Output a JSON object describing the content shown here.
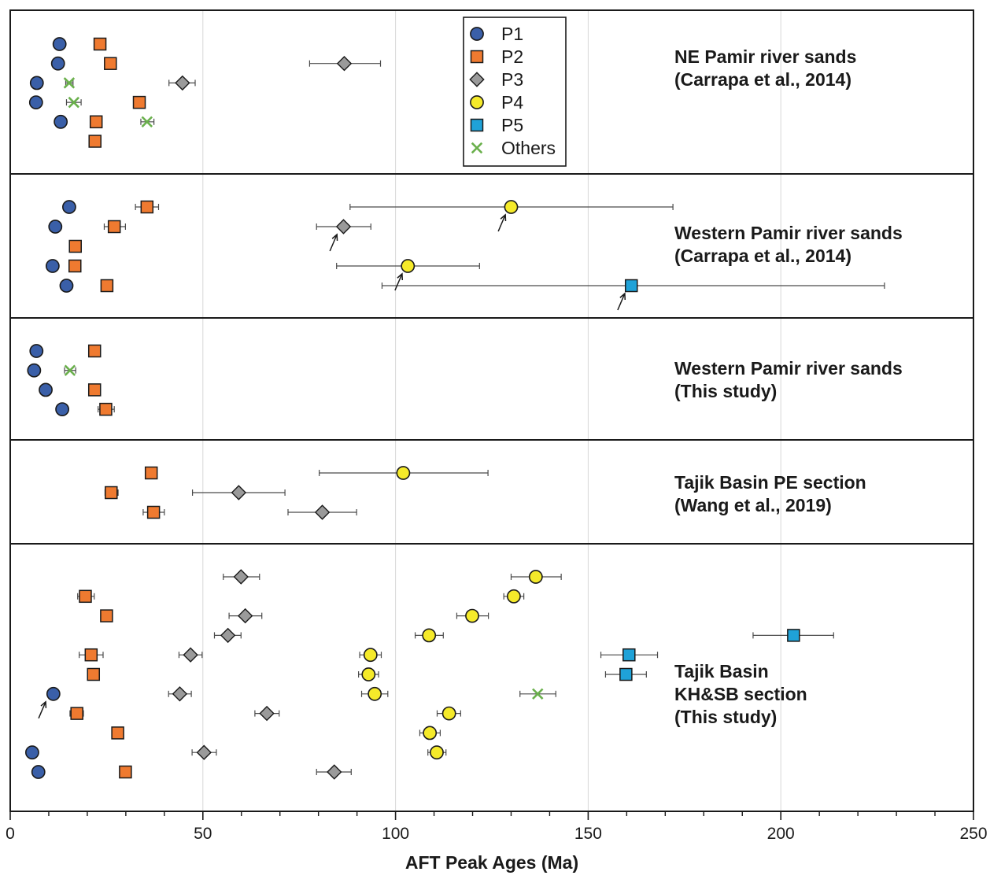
{
  "chart_data": {
    "type": "scatter",
    "xlabel": "AFT Peak Ages (Ma)",
    "ylabel": "",
    "xlim": [
      0,
      250
    ],
    "x_major_ticks": [
      0,
      50,
      100,
      150,
      200,
      250
    ],
    "x_minor_step": 10,
    "grid": "vertical-major",
    "legend": {
      "placement": "top-center",
      "entries": [
        {
          "key": "P1",
          "label": "P1",
          "marker": "circle",
          "color": "#3a5fa8"
        },
        {
          "key": "P2",
          "label": "P2",
          "marker": "square",
          "color": "#ef7a30"
        },
        {
          "key": "P3",
          "label": "P3",
          "marker": "diamond",
          "color": "#9a9a9a"
        },
        {
          "key": "P4",
          "label": "P4",
          "marker": "circle",
          "color": "#f5ea2a"
        },
        {
          "key": "P5",
          "label": "P5",
          "marker": "square",
          "color": "#1fa2d8"
        },
        {
          "key": "Others",
          "label": "Others",
          "marker": "x",
          "color": "#6ab04c"
        }
      ]
    },
    "panels": [
      {
        "label_lines": [
          "NE Pamir river sands",
          "(Carrapa et al., 2014)"
        ],
        "rows": 6,
        "points": [
          {
            "row": 1,
            "x": 12.8,
            "series": "P1"
          },
          {
            "row": 1,
            "x": 23.3,
            "series": "P2"
          },
          {
            "row": 2,
            "x": 12.4,
            "series": "P1"
          },
          {
            "row": 2,
            "x": 26.0,
            "series": "P2"
          },
          {
            "row": 2,
            "x": 86.7,
            "series": "P3",
            "xerr": [
              77.7,
              96.1
            ]
          },
          {
            "row": 3,
            "x": 6.9,
            "series": "P1"
          },
          {
            "row": 3,
            "x": 15.3,
            "series": "Others",
            "xerr": [
              14.4,
              16.3
            ]
          },
          {
            "row": 3,
            "x": 44.7,
            "series": "P3",
            "xerr": [
              41.2,
              48.0
            ]
          },
          {
            "row": 4,
            "x": 6.7,
            "series": "P1"
          },
          {
            "row": 4,
            "x": 16.5,
            "series": "Others",
            "xerr": [
              14.6,
              18.4
            ]
          },
          {
            "row": 4,
            "x": 33.5,
            "series": "P2"
          },
          {
            "row": 5,
            "x": 13.1,
            "series": "P1"
          },
          {
            "row": 5,
            "x": 22.3,
            "series": "P2"
          },
          {
            "row": 5,
            "x": 35.5,
            "series": "Others",
            "xerr": [
              33.9,
              37.3
            ]
          },
          {
            "row": 6,
            "x": 22.0,
            "series": "P2"
          }
        ],
        "arrows": []
      },
      {
        "label_lines": [
          "Western Pamir river sands",
          "(Carrapa et al., 2014)"
        ],
        "rows": 5,
        "points": [
          {
            "row": 1,
            "x": 15.3,
            "series": "P1"
          },
          {
            "row": 1,
            "x": 35.5,
            "series": "P2",
            "xerr": [
              32.5,
              38.5
            ]
          },
          {
            "row": 1,
            "x": 130.0,
            "series": "P4",
            "xerr": [
              88.2,
              172.0
            ]
          },
          {
            "row": 2,
            "x": 11.7,
            "series": "P1"
          },
          {
            "row": 2,
            "x": 27.0,
            "series": "P2",
            "xerr": [
              24.4,
              29.9
            ]
          },
          {
            "row": 2,
            "x": 86.5,
            "series": "P3",
            "xerr": [
              79.5,
              93.6
            ]
          },
          {
            "row": 3,
            "x": 16.9,
            "series": "P2"
          },
          {
            "row": 4,
            "x": 11.0,
            "series": "P1"
          },
          {
            "row": 4,
            "x": 16.8,
            "series": "P2"
          },
          {
            "row": 4,
            "x": 103.2,
            "series": "P4",
            "xerr": [
              84.7,
              121.8
            ]
          },
          {
            "row": 5,
            "x": 14.6,
            "series": "P1"
          },
          {
            "row": 5,
            "x": 25.1,
            "series": "P2"
          },
          {
            "row": 5,
            "x": 161.2,
            "series": "P5",
            "xerr": [
              96.5,
              226.9
            ]
          }
        ],
        "arrows": [
          {
            "row": 1,
            "x": 128.5
          },
          {
            "row": 2,
            "x": 84.8
          },
          {
            "row": 4,
            "x": 101.7
          },
          {
            "row": 5,
            "x": 159.5
          }
        ]
      },
      {
        "label_lines": [
          "Western Pamir river sands",
          "(This study)"
        ],
        "rows": 4,
        "points": [
          {
            "row": 1,
            "x": 6.8,
            "series": "P1"
          },
          {
            "row": 1,
            "x": 21.9,
            "series": "P2"
          },
          {
            "row": 2,
            "x": 6.2,
            "series": "P1"
          },
          {
            "row": 2,
            "x": 15.5,
            "series": "Others",
            "xerr": [
              14.1,
              17.0
            ]
          },
          {
            "row": 3,
            "x": 9.2,
            "series": "P1"
          },
          {
            "row": 3,
            "x": 21.9,
            "series": "P2"
          },
          {
            "row": 4,
            "x": 13.5,
            "series": "P1"
          },
          {
            "row": 4,
            "x": 24.8,
            "series": "P2",
            "xerr": [
              22.8,
              27.0
            ]
          }
        ],
        "arrows": []
      },
      {
        "label_lines": [
          "Tajik Basin PE section",
          "(Wang et al., 2019)"
        ],
        "rows": 3,
        "points": [
          {
            "row": 1,
            "x": 36.6,
            "series": "P2"
          },
          {
            "row": 1,
            "x": 102.0,
            "series": "P4",
            "xerr": [
              80.2,
              124.0
            ]
          },
          {
            "row": 2,
            "x": 26.2,
            "series": "P2",
            "xerr": [
              24.6,
              28.0
            ]
          },
          {
            "row": 2,
            "x": 59.3,
            "series": "P3",
            "xerr": [
              47.3,
              71.3
            ]
          },
          {
            "row": 3,
            "x": 37.2,
            "series": "P2",
            "xerr": [
              34.5,
              40.0
            ]
          },
          {
            "row": 3,
            "x": 81.0,
            "series": "P3",
            "xerr": [
              72.1,
              89.9
            ]
          }
        ],
        "arrows": []
      },
      {
        "label_lines": [
          "Tajik Basin",
          "KH&SB section",
          "(This study)"
        ],
        "rows": 11,
        "points": [
          {
            "row": 1,
            "x": 59.9,
            "series": "P3",
            "xerr": [
              55.3,
              64.7
            ]
          },
          {
            "row": 1,
            "x": 136.4,
            "series": "P4",
            "xerr": [
              130.0,
              143.0
            ]
          },
          {
            "row": 2,
            "x": 19.5,
            "series": "P2",
            "xerr": [
              17.5,
              21.8
            ]
          },
          {
            "row": 2,
            "x": 130.7,
            "series": "P4",
            "xerr": [
              128.1,
              133.3
            ]
          },
          {
            "row": 3,
            "x": 25.0,
            "series": "P2"
          },
          {
            "row": 3,
            "x": 61.0,
            "series": "P3",
            "xerr": [
              56.8,
              65.3
            ]
          },
          {
            "row": 3,
            "x": 119.9,
            "series": "P4",
            "xerr": [
              115.9,
              124.1
            ]
          },
          {
            "row": 4,
            "x": 56.5,
            "series": "P3",
            "xerr": [
              53.0,
              59.9
            ]
          },
          {
            "row": 4,
            "x": 108.7,
            "series": "P4",
            "xerr": [
              105.1,
              112.4
            ]
          },
          {
            "row": 4,
            "x": 203.3,
            "series": "P5",
            "xerr": [
              192.8,
              213.7
            ]
          },
          {
            "row": 5,
            "x": 21.0,
            "series": "P2",
            "xerr": [
              17.9,
              24.1
            ]
          },
          {
            "row": 5,
            "x": 46.8,
            "series": "P3",
            "xerr": [
              43.8,
              49.8
            ]
          },
          {
            "row": 5,
            "x": 93.5,
            "series": "P4",
            "xerr": [
              90.7,
              96.3
            ]
          },
          {
            "row": 5,
            "x": 160.6,
            "series": "P5",
            "xerr": [
              153.3,
              168.0
            ]
          },
          {
            "row": 6,
            "x": 21.6,
            "series": "P2"
          },
          {
            "row": 6,
            "x": 93.0,
            "series": "P4",
            "xerr": [
              90.4,
              95.6
            ]
          },
          {
            "row": 6,
            "x": 159.8,
            "series": "P5",
            "xerr": [
              154.5,
              165.1
            ]
          },
          {
            "row": 7,
            "x": 11.2,
            "series": "P1",
            "xerr": [
              10.0,
              12.5
            ]
          },
          {
            "row": 7,
            "x": 44.0,
            "series": "P3",
            "xerr": [
              41.1,
              47.0
            ]
          },
          {
            "row": 7,
            "x": 94.6,
            "series": "P4",
            "xerr": [
              91.2,
              98.0
            ]
          },
          {
            "row": 7,
            "x": 136.9,
            "series": "Others",
            "xerr": [
              132.3,
              141.6
            ]
          },
          {
            "row": 8,
            "x": 17.3,
            "series": "P2",
            "xerr": [
              15.5,
              19.0
            ]
          },
          {
            "row": 8,
            "x": 66.6,
            "series": "P3",
            "xerr": [
              63.5,
              69.8
            ]
          },
          {
            "row": 8,
            "x": 113.9,
            "series": "P4",
            "xerr": [
              110.8,
              116.9
            ]
          },
          {
            "row": 9,
            "x": 27.9,
            "series": "P2"
          },
          {
            "row": 9,
            "x": 108.9,
            "series": "P4",
            "xerr": [
              106.3,
              111.6
            ]
          },
          {
            "row": 10,
            "x": 5.7,
            "series": "P1",
            "xerr": [
              4.5,
              7.0
            ]
          },
          {
            "row": 10,
            "x": 50.3,
            "series": "P3",
            "xerr": [
              47.2,
              53.5
            ]
          },
          {
            "row": 10,
            "x": 110.7,
            "series": "P4",
            "xerr": [
              108.4,
              113.1
            ]
          },
          {
            "row": 11,
            "x": 7.3,
            "series": "P1"
          },
          {
            "row": 11,
            "x": 29.9,
            "series": "P2"
          },
          {
            "row": 11,
            "x": 84.1,
            "series": "P3",
            "xerr": [
              79.5,
              88.5
            ]
          }
        ],
        "arrows": [
          {
            "row": 7,
            "x": 9.2
          }
        ]
      }
    ]
  }
}
